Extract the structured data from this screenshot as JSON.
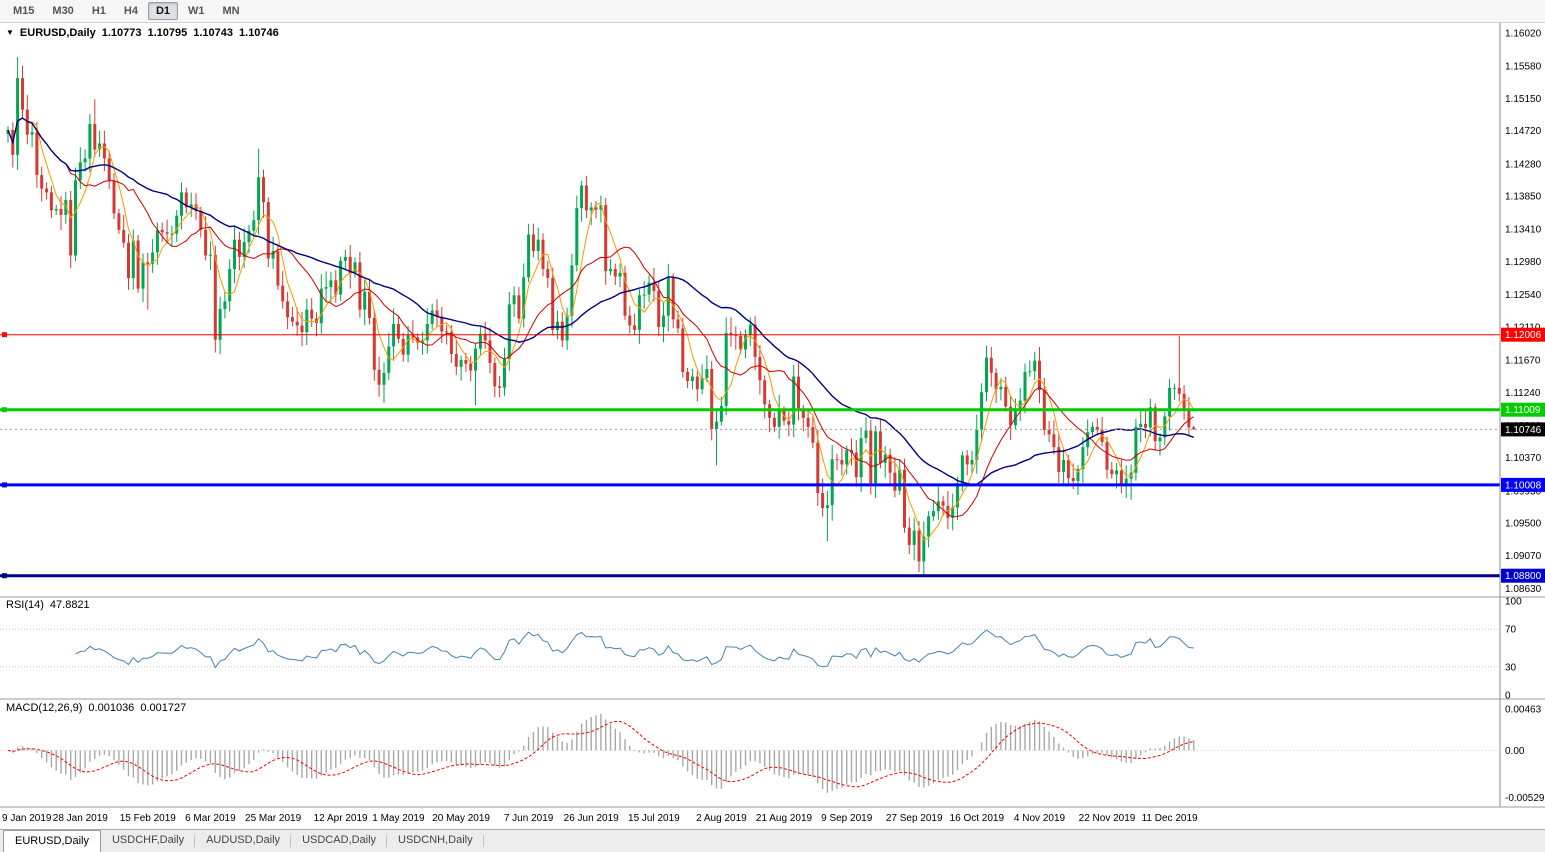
{
  "toolbar": {
    "timeframes": [
      "M15",
      "M30",
      "H1",
      "H4",
      "D1",
      "W1",
      "MN"
    ],
    "active": "D1"
  },
  "chart_header": {
    "symbol": "EURUSD,Daily",
    "open": "1.10773",
    "high": "1.10795",
    "low": "1.10743",
    "close": "1.10746"
  },
  "rsi_label": {
    "name": "RSI(14)",
    "value": "47.8821"
  },
  "macd_label": {
    "name": "MACD(12,26,9)",
    "main": "0.001036",
    "signal": "0.001727"
  },
  "tabs": {
    "items": [
      "EURUSD,Daily",
      "USDCHF,Daily",
      "AUDUSD,Daily",
      "USDCAD,Daily",
      "USDCNH,Daily"
    ],
    "active_index": 0
  },
  "chart_data": {
    "type": "candlestick",
    "symbol": "EURUSD",
    "timeframe": "Daily",
    "title": "EURUSD,Daily",
    "scale": {
      "min": 1.0857,
      "max": 1.161
    },
    "price_ticks": [
      "1.16020",
      "1.15580",
      "1.15150",
      "1.14720",
      "1.14280",
      "1.13850",
      "1.13410",
      "1.12980",
      "1.12540",
      "1.12110",
      "1.11670",
      "1.11240",
      "1.10800",
      "1.10370",
      "1.09930",
      "1.09500",
      "1.09070",
      "1.08630"
    ],
    "x_labels": [
      [
        "9 Jan 2019",
        2
      ],
      [
        "28 Jan 2019",
        15
      ],
      [
        "15 Feb 2019",
        29
      ],
      [
        "6 Mar 2019",
        42
      ],
      [
        "25 Mar 2019",
        55
      ],
      [
        "12 Apr 2019",
        69
      ],
      [
        "1 May 2019",
        81
      ],
      [
        "20 May 2019",
        94
      ],
      [
        "7 Jun 2019",
        108
      ],
      [
        "26 Jun 2019",
        121
      ],
      [
        "15 Jul 2019",
        134
      ],
      [
        "2 Aug 2019",
        148
      ],
      [
        "21 Aug 2019",
        161
      ],
      [
        "9 Sep 2019",
        174
      ],
      [
        "27 Sep 2019",
        188
      ],
      [
        "16 Oct 2019",
        201
      ],
      [
        "4 Nov 2019",
        214
      ],
      [
        "22 Nov 2019",
        228
      ],
      [
        "11 Dec 2019",
        241
      ]
    ],
    "colors": {
      "up": "#00A651",
      "down": "#D33A34"
    },
    "candles": {
      "first_open": 1.1468,
      "closes": [
        1.1473,
        1.144,
        1.1542,
        1.15,
        1.1467,
        1.147,
        1.1413,
        1.1395,
        1.139,
        1.1366,
        1.1368,
        1.136,
        1.138,
        1.1306,
        1.1406,
        1.143,
        1.1435,
        1.1481,
        1.1447,
        1.1455,
        1.1435,
        1.1405,
        1.1362,
        1.134,
        1.1323,
        1.1276,
        1.1326,
        1.1262,
        1.1297,
        1.1295,
        1.131,
        1.134,
        1.1337,
        1.1335,
        1.1335,
        1.1359,
        1.139,
        1.137,
        1.1374,
        1.1365,
        1.134,
        1.1306,
        1.1307,
        1.1194,
        1.1235,
        1.1245,
        1.1288,
        1.1327,
        1.1304,
        1.1324,
        1.1339,
        1.1353,
        1.141,
        1.1377,
        1.1302,
        1.1312,
        1.1266,
        1.1245,
        1.1224,
        1.1218,
        1.1213,
        1.1204,
        1.1234,
        1.1222,
        1.1216,
        1.1262,
        1.1264,
        1.1273,
        1.1254,
        1.1299,
        1.1304,
        1.1282,
        1.1297,
        1.1234,
        1.1258,
        1.1223,
        1.1154,
        1.1134,
        1.115,
        1.1185,
        1.1215,
        1.1195,
        1.1174,
        1.12,
        1.1197,
        1.119,
        1.1193,
        1.1215,
        1.1233,
        1.1225,
        1.1205,
        1.1204,
        1.1175,
        1.1158,
        1.1167,
        1.1162,
        1.1153,
        1.1182,
        1.1202,
        1.1193,
        1.1163,
        1.1132,
        1.113,
        1.1168,
        1.1241,
        1.1253,
        1.1222,
        1.1277,
        1.1334,
        1.1312,
        1.1327,
        1.1288,
        1.1276,
        1.1207,
        1.1218,
        1.1193,
        1.1226,
        1.1293,
        1.1369,
        1.1399,
        1.1366,
        1.137,
        1.1367,
        1.1373,
        1.1285,
        1.1288,
        1.1278,
        1.1283,
        1.1226,
        1.1213,
        1.1207,
        1.1253,
        1.1254,
        1.127,
        1.1259,
        1.1211,
        1.1226,
        1.1277,
        1.1221,
        1.1209,
        1.1151,
        1.1139,
        1.1145,
        1.1128,
        1.1143,
        1.1155,
        1.1075,
        1.1085,
        1.1106,
        1.1203,
        1.12,
        1.1199,
        1.1181,
        1.12,
        1.1214,
        1.1171,
        1.114,
        1.1108,
        1.109,
        1.1078,
        1.11,
        1.1086,
        1.1081,
        1.1145,
        1.1101,
        1.109,
        1.1078,
        1.1057,
        1.099,
        1.097,
        1.0974,
        1.1035,
        1.1034,
        1.1028,
        1.1047,
        1.1044,
        1.1011,
        1.1063,
        1.1073,
        1.1003,
        1.1072,
        1.103,
        1.1041,
        1.1017,
        1.0993,
        1.1021,
        1.0944,
        1.0921,
        1.094,
        1.0899,
        1.0932,
        1.0959,
        1.0966,
        1.0979,
        1.0973,
        1.0957,
        1.0971,
        1.1003,
        1.104,
        1.1028,
        1.1034,
        1.1074,
        1.1124,
        1.117,
        1.115,
        1.1128,
        1.1131,
        1.1105,
        1.108,
        1.1099,
        1.1113,
        1.1151,
        1.1152,
        1.1166,
        1.1127,
        1.1074,
        1.1068,
        1.1051,
        1.1018,
        1.1034,
        1.101,
        1.1006,
        1.1022,
        1.1051,
        1.1071,
        1.1078,
        1.1074,
        1.1058,
        1.1021,
        1.1015,
        1.102,
        1.1001,
        1.1009,
        1.1017,
        1.1078,
        1.1082,
        1.1077,
        1.1104,
        1.1059,
        1.1064,
        1.1092,
        1.113,
        1.113,
        1.1122,
        1.11,
        1.10773,
        1.10746
      ],
      "extremes": {
        "2": {
          "h": 1.157
        },
        "13": {
          "l": 1.1289
        },
        "18": {
          "h": 1.1514
        },
        "29": {
          "l": 1.1234
        },
        "36": {
          "h": 1.1403
        },
        "43": {
          "l": 1.1177
        },
        "52": {
          "h": 1.1448
        },
        "77": {
          "l": 1.1118
        },
        "78": {
          "l": 1.111
        },
        "97": {
          "l": 1.1107
        },
        "108": {
          "h": 1.1348
        },
        "120": {
          "h": 1.1412
        },
        "146": {
          "l": 1.106
        },
        "147": {
          "l": 1.1027
        },
        "170": {
          "l": 1.0926
        },
        "189": {
          "l": 1.0885
        },
        "190": {
          "l": 1.0879
        },
        "233": {
          "l": 1.0981
        },
        "243": {
          "h": 1.1199
        },
        "246": {
          "h": 1.10795,
          "l": 1.10743
        }
      }
    },
    "moving_averages": [
      {
        "period": 5,
        "color": "#FF9900",
        "width": 1
      },
      {
        "period": 13,
        "color": "#CC0000",
        "width": 1
      },
      {
        "period": 34,
        "color": "#000080",
        "width": 1.4
      }
    ],
    "hlines": [
      {
        "price": 1.12006,
        "label": "1.12006",
        "color": "#FF0000",
        "badge_bg": "#FF0000",
        "width": 1
      },
      {
        "price": 1.11009,
        "label": "1.11009",
        "color": "#00CC00",
        "badge_bg": "#00CC00",
        "width": 3
      },
      {
        "price": 1.10008,
        "label": "1.10008",
        "color": "#0000FF",
        "badge_bg": "#0000FF",
        "width": 3
      },
      {
        "price": 1.088,
        "label": "1.08800",
        "color": "#000088",
        "badge_bg": "#0000CC",
        "width": 3
      }
    ],
    "current_price": 1.10746,
    "current_label": "1.10746",
    "rsi": {
      "period": 14,
      "color": "#4682B4",
      "levels": [
        70,
        30
      ],
      "ticks": [
        {
          "v": 100,
          "label": "100"
        },
        {
          "v": 70,
          "label": "70"
        },
        {
          "v": 30,
          "label": "30"
        },
        {
          "v": 0,
          "label": "0"
        }
      ]
    },
    "macd": {
      "fast": 12,
      "slow": 26,
      "signal": 9,
      "histogram_color": "#A8A8A8",
      "signal_color": "#FF0000",
      "ticks": [
        {
          "v": 0.00463,
          "label": "0.00463"
        },
        {
          "v": 0,
          "label": "0.00"
        },
        {
          "v": -0.00529,
          "label": "-0.00529"
        }
      ]
    }
  }
}
